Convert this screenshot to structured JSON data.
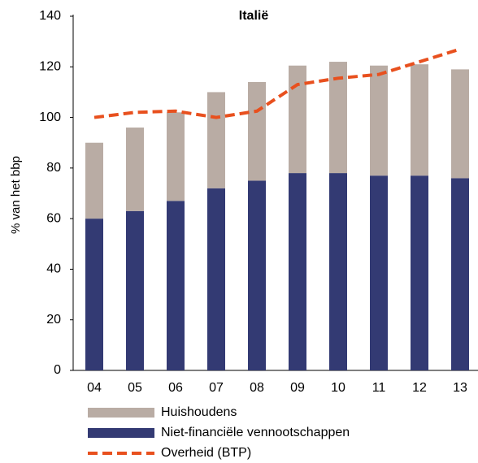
{
  "chart_data": {
    "type": "bar",
    "title": "Italië",
    "y_label": "% van het bbp",
    "categories": [
      "04",
      "05",
      "06",
      "07",
      "08",
      "09",
      "10",
      "11",
      "12",
      "13"
    ],
    "series": [
      {
        "name": "Huishoudens",
        "color": "#b9aca4",
        "type": "bar",
        "values": [
          30,
          33,
          35,
          38,
          39,
          42.5,
          44,
          43.5,
          44,
          43
        ]
      },
      {
        "name": "Niet-financiële vennootschappen",
        "color": "#333a73",
        "type": "bar",
        "values": [
          60,
          63,
          67,
          72,
          75,
          78,
          78,
          77,
          77,
          76
        ]
      },
      {
        "name": "Overheid (BTP)",
        "color": "#e8501e",
        "type": "line",
        "dashed": true,
        "values": [
          100,
          102,
          102.5,
          100,
          102.5,
          113,
          115.5,
          117,
          122,
          127
        ]
      }
    ],
    "ylim": [
      0,
      140
    ],
    "yticks": [
      0,
      20,
      40,
      60,
      80,
      100,
      120,
      140
    ],
    "grid": false
  }
}
